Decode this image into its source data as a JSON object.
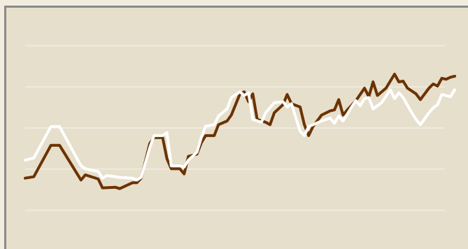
{
  "chart_data": {
    "type": "line",
    "title": "",
    "xlabel": "",
    "ylabel": "",
    "grid": true,
    "legend": "none",
    "xlim": [
      0,
      100
    ],
    "ylim": [
      0,
      100
    ],
    "gridlines_y": [
      10,
      30,
      50,
      70,
      90
    ],
    "colors": {
      "background": "#e6dfcc",
      "gridline": "#f3eee3",
      "series_brown": "#6b3200",
      "series_white": "#ffffff",
      "border": "#8a8a8a"
    },
    "series": [
      {
        "values": [
          [
            0,
            25.6
          ],
          [
            2,
            26.3
          ],
          [
            6,
            41.6
          ],
          [
            8,
            41.6
          ],
          [
            13,
            24.7
          ],
          [
            14,
            27.2
          ],
          [
            17,
            25.2
          ],
          [
            18,
            20.9
          ],
          [
            21,
            21.2
          ],
          [
            22,
            20.5
          ],
          [
            25,
            23.4
          ],
          [
            26,
            23.4
          ],
          [
            27,
            25.6
          ],
          [
            29,
            42.5
          ],
          [
            30,
            45.3
          ],
          [
            32,
            45.3
          ],
          [
            33,
            35.1
          ],
          [
            34,
            30.2
          ],
          [
            36,
            30.2
          ],
          [
            37,
            27.7
          ],
          [
            38,
            36.2
          ],
          [
            40,
            37.3
          ],
          [
            41,
            42.8
          ],
          [
            42,
            46.3
          ],
          [
            44,
            46.3
          ],
          [
            45,
            51.6
          ],
          [
            47,
            53.4
          ],
          [
            48,
            56.3
          ],
          [
            50,
            66.6
          ],
          [
            51,
            67.6
          ],
          [
            52,
            62.8
          ],
          [
            53,
            66.6
          ],
          [
            54,
            54.2
          ],
          [
            56,
            52.8
          ],
          [
            57,
            51.6
          ],
          [
            58,
            57.4
          ],
          [
            60,
            61.3
          ],
          [
            61,
            66.3
          ],
          [
            62,
            61.8
          ],
          [
            64,
            60.2
          ],
          [
            65,
            51.6
          ],
          [
            66,
            46.3
          ],
          [
            67,
            50.7
          ],
          [
            69,
            56.3
          ],
          [
            71,
            58.3
          ],
          [
            72,
            58.8
          ],
          [
            73,
            63.8
          ],
          [
            74,
            56.3
          ],
          [
            75,
            58.8
          ],
          [
            77,
            63.3
          ],
          [
            79,
            69.4
          ],
          [
            80,
            65.2
          ],
          [
            81,
            72.4
          ],
          [
            82,
            65.8
          ],
          [
            84,
            69.4
          ],
          [
            86,
            76.2
          ],
          [
            87,
            72.4
          ],
          [
            88,
            72.8
          ],
          [
            89,
            69.4
          ],
          [
            91,
            66.6
          ],
          [
            92,
            63.8
          ],
          [
            94,
            69.4
          ],
          [
            95,
            71.4
          ],
          [
            96,
            70.4
          ],
          [
            97,
            74.2
          ],
          [
            98,
            73.7
          ],
          [
            99,
            74.7
          ],
          [
            100,
            75.2
          ]
        ]
      },
      {
        "values": [
          [
            0,
            34.4
          ],
          [
            2,
            35.4
          ],
          [
            6,
            50.7
          ],
          [
            8,
            50.7
          ],
          [
            13,
            31.6
          ],
          [
            14,
            30.2
          ],
          [
            17,
            28.8
          ],
          [
            18,
            25.6
          ],
          [
            19,
            26.9
          ],
          [
            22,
            26.0
          ],
          [
            25,
            25.6
          ],
          [
            26,
            24.7
          ],
          [
            27,
            26.0
          ],
          [
            29,
            40.4
          ],
          [
            30,
            46.3
          ],
          [
            32,
            46.3
          ],
          [
            33,
            47.8
          ],
          [
            34,
            31.6
          ],
          [
            36,
            31.6
          ],
          [
            37,
            31.0
          ],
          [
            38,
            34.4
          ],
          [
            40,
            38.3
          ],
          [
            41,
            45.3
          ],
          [
            42,
            50.9
          ],
          [
            44,
            51.6
          ],
          [
            45,
            55.8
          ],
          [
            47,
            59.3
          ],
          [
            48,
            64.8
          ],
          [
            50,
            67.6
          ],
          [
            51,
            65.8
          ],
          [
            52,
            67.1
          ],
          [
            53,
            54.2
          ],
          [
            55,
            52.8
          ],
          [
            56,
            57.4
          ],
          [
            58,
            62.3
          ],
          [
            60,
            62.8
          ],
          [
            61,
            60.2
          ],
          [
            62,
            61.8
          ],
          [
            64,
            48.4
          ],
          [
            65,
            46.3
          ],
          [
            66,
            50.7
          ],
          [
            67,
            51.6
          ],
          [
            69,
            53.4
          ],
          [
            71,
            54.8
          ],
          [
            72,
            52.3
          ],
          [
            73,
            55.8
          ],
          [
            74,
            53.4
          ],
          [
            76,
            60.2
          ],
          [
            77,
            63.3
          ],
          [
            78,
            60.8
          ],
          [
            79,
            64.3
          ],
          [
            80,
            64.8
          ],
          [
            81,
            59.3
          ],
          [
            83,
            62.3
          ],
          [
            85,
            68.6
          ],
          [
            86,
            64.3
          ],
          [
            87,
            67.1
          ],
          [
            88,
            64.8
          ],
          [
            90,
            57.4
          ],
          [
            91,
            54.2
          ],
          [
            92,
            51.6
          ],
          [
            94,
            57.4
          ],
          [
            95,
            59.8
          ],
          [
            96,
            61.3
          ],
          [
            97,
            66.3
          ],
          [
            99,
            65.2
          ],
          [
            100,
            68.6
          ]
        ]
      }
    ]
  }
}
